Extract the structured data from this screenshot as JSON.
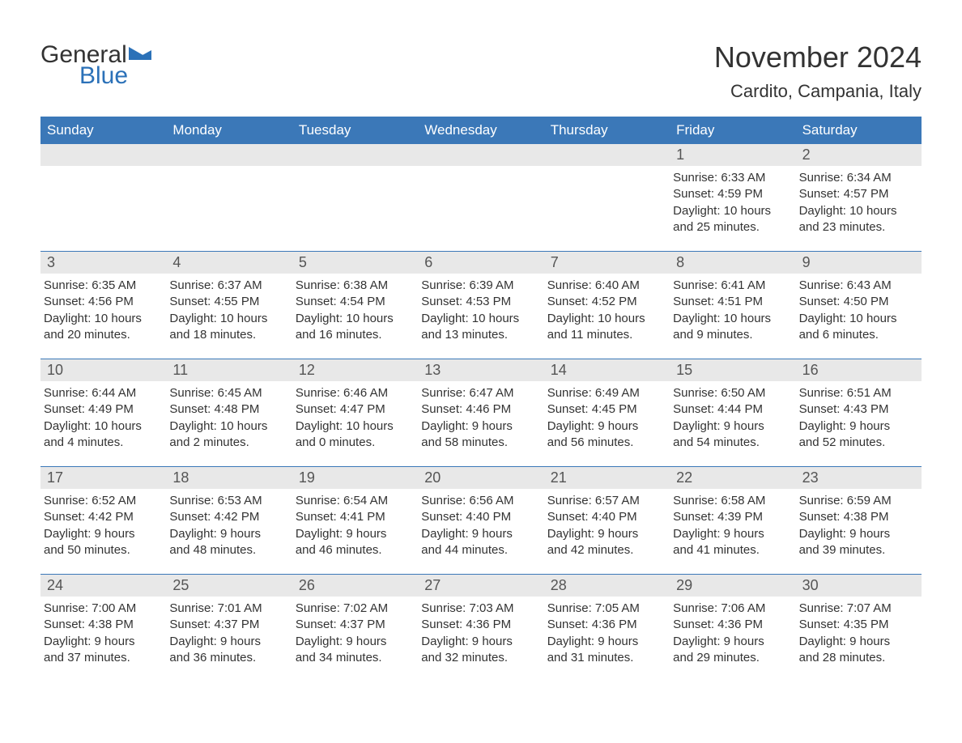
{
  "logo": {
    "text1": "General",
    "text2": "Blue",
    "icon_color": "#2b71b8"
  },
  "title": "November 2024",
  "location": "Cardito, Campania, Italy",
  "colors": {
    "header_bg": "#3b78b8",
    "header_text": "#ffffff",
    "daynum_bg": "#e8e8e8",
    "text": "#333333",
    "border": "#3b78b8"
  },
  "weekdays": [
    "Sunday",
    "Monday",
    "Tuesday",
    "Wednesday",
    "Thursday",
    "Friday",
    "Saturday"
  ],
  "weeks": [
    [
      null,
      null,
      null,
      null,
      null,
      {
        "n": "1",
        "sunrise": "Sunrise: 6:33 AM",
        "sunset": "Sunset: 4:59 PM",
        "day1": "Daylight: 10 hours",
        "day2": "and 25 minutes."
      },
      {
        "n": "2",
        "sunrise": "Sunrise: 6:34 AM",
        "sunset": "Sunset: 4:57 PM",
        "day1": "Daylight: 10 hours",
        "day2": "and 23 minutes."
      }
    ],
    [
      {
        "n": "3",
        "sunrise": "Sunrise: 6:35 AM",
        "sunset": "Sunset: 4:56 PM",
        "day1": "Daylight: 10 hours",
        "day2": "and 20 minutes."
      },
      {
        "n": "4",
        "sunrise": "Sunrise: 6:37 AM",
        "sunset": "Sunset: 4:55 PM",
        "day1": "Daylight: 10 hours",
        "day2": "and 18 minutes."
      },
      {
        "n": "5",
        "sunrise": "Sunrise: 6:38 AM",
        "sunset": "Sunset: 4:54 PM",
        "day1": "Daylight: 10 hours",
        "day2": "and 16 minutes."
      },
      {
        "n": "6",
        "sunrise": "Sunrise: 6:39 AM",
        "sunset": "Sunset: 4:53 PM",
        "day1": "Daylight: 10 hours",
        "day2": "and 13 minutes."
      },
      {
        "n": "7",
        "sunrise": "Sunrise: 6:40 AM",
        "sunset": "Sunset: 4:52 PM",
        "day1": "Daylight: 10 hours",
        "day2": "and 11 minutes."
      },
      {
        "n": "8",
        "sunrise": "Sunrise: 6:41 AM",
        "sunset": "Sunset: 4:51 PM",
        "day1": "Daylight: 10 hours",
        "day2": "and 9 minutes."
      },
      {
        "n": "9",
        "sunrise": "Sunrise: 6:43 AM",
        "sunset": "Sunset: 4:50 PM",
        "day1": "Daylight: 10 hours",
        "day2": "and 6 minutes."
      }
    ],
    [
      {
        "n": "10",
        "sunrise": "Sunrise: 6:44 AM",
        "sunset": "Sunset: 4:49 PM",
        "day1": "Daylight: 10 hours",
        "day2": "and 4 minutes."
      },
      {
        "n": "11",
        "sunrise": "Sunrise: 6:45 AM",
        "sunset": "Sunset: 4:48 PM",
        "day1": "Daylight: 10 hours",
        "day2": "and 2 minutes."
      },
      {
        "n": "12",
        "sunrise": "Sunrise: 6:46 AM",
        "sunset": "Sunset: 4:47 PM",
        "day1": "Daylight: 10 hours",
        "day2": "and 0 minutes."
      },
      {
        "n": "13",
        "sunrise": "Sunrise: 6:47 AM",
        "sunset": "Sunset: 4:46 PM",
        "day1": "Daylight: 9 hours",
        "day2": "and 58 minutes."
      },
      {
        "n": "14",
        "sunrise": "Sunrise: 6:49 AM",
        "sunset": "Sunset: 4:45 PM",
        "day1": "Daylight: 9 hours",
        "day2": "and 56 minutes."
      },
      {
        "n": "15",
        "sunrise": "Sunrise: 6:50 AM",
        "sunset": "Sunset: 4:44 PM",
        "day1": "Daylight: 9 hours",
        "day2": "and 54 minutes."
      },
      {
        "n": "16",
        "sunrise": "Sunrise: 6:51 AM",
        "sunset": "Sunset: 4:43 PM",
        "day1": "Daylight: 9 hours",
        "day2": "and 52 minutes."
      }
    ],
    [
      {
        "n": "17",
        "sunrise": "Sunrise: 6:52 AM",
        "sunset": "Sunset: 4:42 PM",
        "day1": "Daylight: 9 hours",
        "day2": "and 50 minutes."
      },
      {
        "n": "18",
        "sunrise": "Sunrise: 6:53 AM",
        "sunset": "Sunset: 4:42 PM",
        "day1": "Daylight: 9 hours",
        "day2": "and 48 minutes."
      },
      {
        "n": "19",
        "sunrise": "Sunrise: 6:54 AM",
        "sunset": "Sunset: 4:41 PM",
        "day1": "Daylight: 9 hours",
        "day2": "and 46 minutes."
      },
      {
        "n": "20",
        "sunrise": "Sunrise: 6:56 AM",
        "sunset": "Sunset: 4:40 PM",
        "day1": "Daylight: 9 hours",
        "day2": "and 44 minutes."
      },
      {
        "n": "21",
        "sunrise": "Sunrise: 6:57 AM",
        "sunset": "Sunset: 4:40 PM",
        "day1": "Daylight: 9 hours",
        "day2": "and 42 minutes."
      },
      {
        "n": "22",
        "sunrise": "Sunrise: 6:58 AM",
        "sunset": "Sunset: 4:39 PM",
        "day1": "Daylight: 9 hours",
        "day2": "and 41 minutes."
      },
      {
        "n": "23",
        "sunrise": "Sunrise: 6:59 AM",
        "sunset": "Sunset: 4:38 PM",
        "day1": "Daylight: 9 hours",
        "day2": "and 39 minutes."
      }
    ],
    [
      {
        "n": "24",
        "sunrise": "Sunrise: 7:00 AM",
        "sunset": "Sunset: 4:38 PM",
        "day1": "Daylight: 9 hours",
        "day2": "and 37 minutes."
      },
      {
        "n": "25",
        "sunrise": "Sunrise: 7:01 AM",
        "sunset": "Sunset: 4:37 PM",
        "day1": "Daylight: 9 hours",
        "day2": "and 36 minutes."
      },
      {
        "n": "26",
        "sunrise": "Sunrise: 7:02 AM",
        "sunset": "Sunset: 4:37 PM",
        "day1": "Daylight: 9 hours",
        "day2": "and 34 minutes."
      },
      {
        "n": "27",
        "sunrise": "Sunrise: 7:03 AM",
        "sunset": "Sunset: 4:36 PM",
        "day1": "Daylight: 9 hours",
        "day2": "and 32 minutes."
      },
      {
        "n": "28",
        "sunrise": "Sunrise: 7:05 AM",
        "sunset": "Sunset: 4:36 PM",
        "day1": "Daylight: 9 hours",
        "day2": "and 31 minutes."
      },
      {
        "n": "29",
        "sunrise": "Sunrise: 7:06 AM",
        "sunset": "Sunset: 4:36 PM",
        "day1": "Daylight: 9 hours",
        "day2": "and 29 minutes."
      },
      {
        "n": "30",
        "sunrise": "Sunrise: 7:07 AM",
        "sunset": "Sunset: 4:35 PM",
        "day1": "Daylight: 9 hours",
        "day2": "and 28 minutes."
      }
    ]
  ]
}
